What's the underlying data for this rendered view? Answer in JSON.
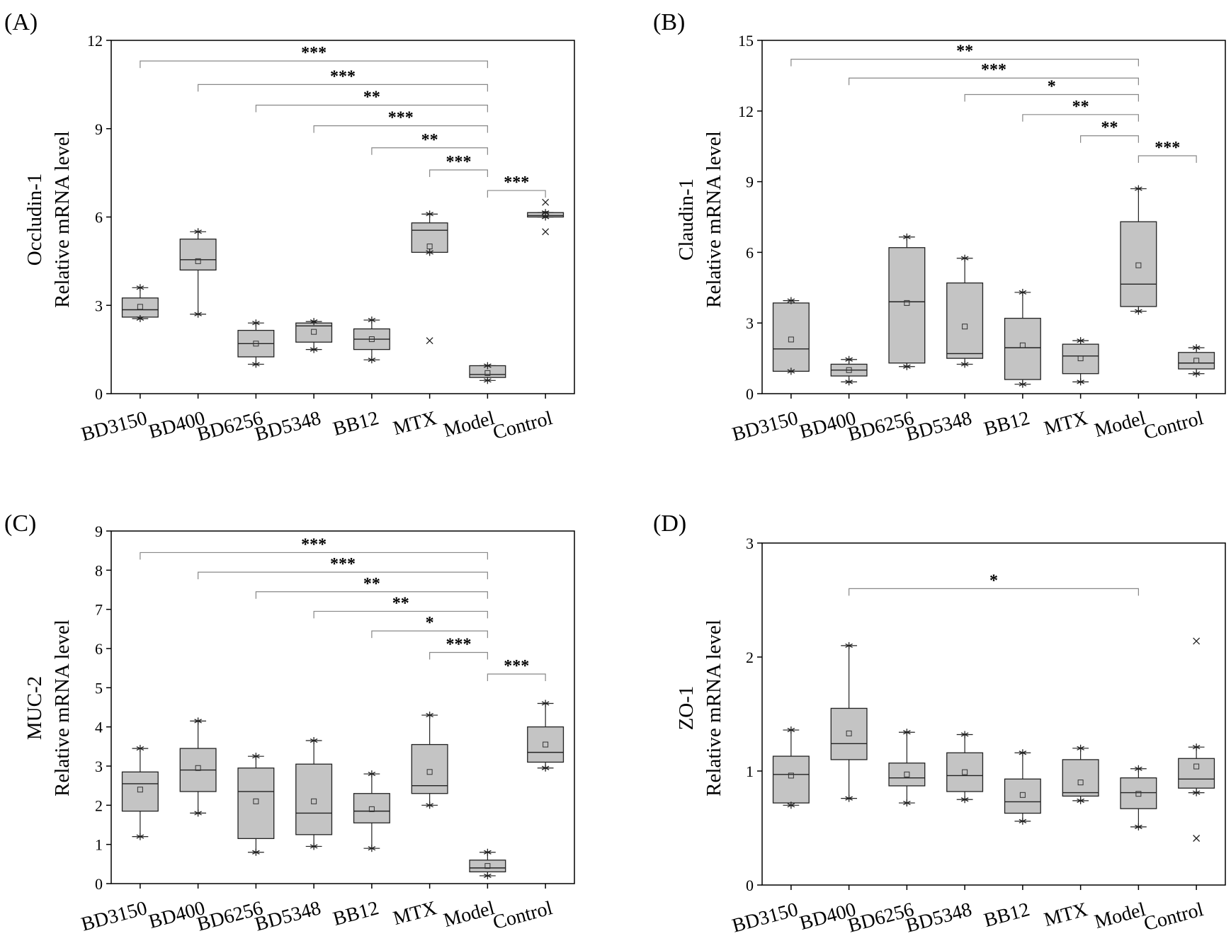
{
  "chart_data": [
    {
      "panel_label": "(A)",
      "type": "box",
      "ylabel_line1": "Occludin-1",
      "ylabel_line2": "Relative mRNA level",
      "ylim": [
        0,
        12
      ],
      "yticks": [
        "0",
        "3",
        "6",
        "9",
        "12"
      ],
      "categories": [
        "BD3150",
        "BD400",
        "BD6256",
        "BD5348",
        "BB12",
        "MTX",
        "Model",
        "Control"
      ],
      "boxes": [
        {
          "whisker_low": 2.55,
          "q1": 2.6,
          "median": 2.85,
          "q3": 3.25,
          "whisker_high": 3.6,
          "mean": 2.95,
          "outliers": []
        },
        {
          "whisker_low": 2.7,
          "q1": 4.2,
          "median": 4.55,
          "q3": 5.25,
          "whisker_high": 5.5,
          "mean": 4.5,
          "outliers": []
        },
        {
          "whisker_low": 1.0,
          "q1": 1.25,
          "median": 1.7,
          "q3": 2.15,
          "whisker_high": 2.4,
          "mean": 1.7,
          "outliers": []
        },
        {
          "whisker_low": 1.5,
          "q1": 1.75,
          "median": 2.3,
          "q3": 2.4,
          "whisker_high": 2.45,
          "mean": 2.1,
          "outliers": []
        },
        {
          "whisker_low": 1.15,
          "q1": 1.5,
          "median": 1.85,
          "q3": 2.2,
          "whisker_high": 2.5,
          "mean": 1.85,
          "outliers": []
        },
        {
          "whisker_low": 4.8,
          "q1": 4.8,
          "median": 5.55,
          "q3": 5.8,
          "whisker_high": 6.1,
          "mean": 5.0,
          "outliers": [
            1.8
          ]
        },
        {
          "whisker_low": 0.45,
          "q1": 0.55,
          "median": 0.65,
          "q3": 0.95,
          "whisker_high": 0.95,
          "mean": 0.7,
          "outliers": []
        },
        {
          "whisker_low": 6.0,
          "q1": 6.0,
          "median": 6.05,
          "q3": 6.15,
          "whisker_high": 6.15,
          "mean": 6.1,
          "outliers": [
            6.5,
            5.5
          ]
        }
      ],
      "comparisons": [
        {
          "from": 0,
          "to": 6,
          "level": 11.3,
          "label": "***"
        },
        {
          "from": 1,
          "to": 6,
          "level": 10.5,
          "label": "***"
        },
        {
          "from": 2,
          "to": 6,
          "level": 9.8,
          "label": "**"
        },
        {
          "from": 3,
          "to": 6,
          "level": 9.1,
          "label": "***"
        },
        {
          "from": 4,
          "to": 6,
          "level": 8.35,
          "label": "**"
        },
        {
          "from": 5,
          "to": 6,
          "level": 7.6,
          "label": "***"
        },
        {
          "from": 6,
          "to": 7,
          "level": 6.9,
          "label": "***"
        }
      ]
    },
    {
      "panel_label": "(B)",
      "type": "box",
      "ylabel_line1": "Claudin-1",
      "ylabel_line2": "Relative mRNA level",
      "ylim": [
        0,
        15
      ],
      "yticks": [
        "0",
        "3",
        "6",
        "9",
        "12",
        "15"
      ],
      "categories": [
        "BD3150",
        "BD400",
        "BD6256",
        "BD5348",
        "BB12",
        "MTX",
        "Model",
        "Control"
      ],
      "boxes": [
        {
          "whisker_low": 0.95,
          "q1": 0.95,
          "median": 1.9,
          "q3": 3.85,
          "whisker_high": 3.95,
          "mean": 2.3,
          "outliers": []
        },
        {
          "whisker_low": 0.5,
          "q1": 0.75,
          "median": 1.0,
          "q3": 1.25,
          "whisker_high": 1.45,
          "mean": 1.0,
          "outliers": []
        },
        {
          "whisker_low": 1.15,
          "q1": 1.3,
          "median": 3.9,
          "q3": 6.2,
          "whisker_high": 6.65,
          "mean": 3.85,
          "outliers": []
        },
        {
          "whisker_low": 1.25,
          "q1": 1.5,
          "median": 1.7,
          "q3": 4.7,
          "whisker_high": 5.75,
          "mean": 2.85,
          "outliers": []
        },
        {
          "whisker_low": 0.4,
          "q1": 0.6,
          "median": 1.95,
          "q3": 3.2,
          "whisker_high": 4.3,
          "mean": 2.05,
          "outliers": []
        },
        {
          "whisker_low": 0.5,
          "q1": 0.85,
          "median": 1.6,
          "q3": 2.1,
          "whisker_high": 2.25,
          "mean": 1.5,
          "outliers": []
        },
        {
          "whisker_low": 3.5,
          "q1": 3.7,
          "median": 4.65,
          "q3": 7.3,
          "whisker_high": 8.7,
          "mean": 5.45,
          "outliers": []
        },
        {
          "whisker_low": 0.85,
          "q1": 1.05,
          "median": 1.3,
          "q3": 1.75,
          "whisker_high": 1.95,
          "mean": 1.4,
          "outliers": []
        }
      ],
      "comparisons": [
        {
          "from": 0,
          "to": 6,
          "level": 14.2,
          "label": "**"
        },
        {
          "from": 1,
          "to": 6,
          "level": 13.4,
          "label": "***"
        },
        {
          "from": 3,
          "to": 6,
          "level": 12.7,
          "label": "*"
        },
        {
          "from": 4,
          "to": 6,
          "level": 11.85,
          "label": "**"
        },
        {
          "from": 5,
          "to": 6,
          "level": 10.95,
          "label": "**"
        },
        {
          "from": 6,
          "to": 7,
          "level": 10.1,
          "label": "***"
        }
      ]
    },
    {
      "panel_label": "(C)",
      "type": "box",
      "ylabel_line1": "MUC-2",
      "ylabel_line2": "Relative mRNA level",
      "ylim": [
        0,
        9
      ],
      "yticks": [
        "0",
        "1",
        "2",
        "3",
        "4",
        "5",
        "6",
        "7",
        "8",
        "9"
      ],
      "categories": [
        "BD3150",
        "BD400",
        "BD6256",
        "BD5348",
        "BB12",
        "MTX",
        "Model",
        "Control"
      ],
      "boxes": [
        {
          "whisker_low": 1.2,
          "q1": 1.85,
          "median": 2.55,
          "q3": 2.85,
          "whisker_high": 3.45,
          "mean": 2.4,
          "outliers": []
        },
        {
          "whisker_low": 1.8,
          "q1": 2.35,
          "median": 2.9,
          "q3": 3.45,
          "whisker_high": 4.15,
          "mean": 2.95,
          "outliers": []
        },
        {
          "whisker_low": 0.8,
          "q1": 1.15,
          "median": 2.35,
          "q3": 2.95,
          "whisker_high": 3.25,
          "mean": 2.1,
          "outliers": []
        },
        {
          "whisker_low": 0.95,
          "q1": 1.25,
          "median": 1.8,
          "q3": 3.05,
          "whisker_high": 3.65,
          "mean": 2.1,
          "outliers": []
        },
        {
          "whisker_low": 0.9,
          "q1": 1.55,
          "median": 1.85,
          "q3": 2.3,
          "whisker_high": 2.8,
          "mean": 1.9,
          "outliers": []
        },
        {
          "whisker_low": 2.0,
          "q1": 2.3,
          "median": 2.5,
          "q3": 3.55,
          "whisker_high": 4.3,
          "mean": 2.85,
          "outliers": []
        },
        {
          "whisker_low": 0.2,
          "q1": 0.3,
          "median": 0.4,
          "q3": 0.6,
          "whisker_high": 0.8,
          "mean": 0.45,
          "outliers": []
        },
        {
          "whisker_low": 2.95,
          "q1": 3.1,
          "median": 3.35,
          "q3": 4.0,
          "whisker_high": 4.6,
          "mean": 3.55,
          "outliers": []
        }
      ],
      "comparisons": [
        {
          "from": 0,
          "to": 6,
          "level": 8.45,
          "label": "***"
        },
        {
          "from": 1,
          "to": 6,
          "level": 7.95,
          "label": "***"
        },
        {
          "from": 2,
          "to": 6,
          "level": 7.45,
          "label": "**"
        },
        {
          "from": 3,
          "to": 6,
          "level": 6.95,
          "label": "**"
        },
        {
          "from": 4,
          "to": 6,
          "level": 6.45,
          "label": "*"
        },
        {
          "from": 5,
          "to": 6,
          "level": 5.9,
          "label": "***"
        },
        {
          "from": 6,
          "to": 7,
          "level": 5.35,
          "label": "***"
        }
      ]
    },
    {
      "panel_label": "(D)",
      "type": "box",
      "ylabel_line1": "ZO-1",
      "ylabel_line2": "Relative mRNA level",
      "ylim": [
        0,
        3
      ],
      "yticks": [
        "0",
        "1",
        "2",
        "3"
      ],
      "categories": [
        "BD3150",
        "BD400",
        "BD6256",
        "BD5348",
        "BB12",
        "MTX",
        "Model",
        "Control"
      ],
      "boxes": [
        {
          "whisker_low": 0.7,
          "q1": 0.72,
          "median": 0.97,
          "q3": 1.13,
          "whisker_high": 1.36,
          "mean": 0.96,
          "outliers": []
        },
        {
          "whisker_low": 0.76,
          "q1": 1.1,
          "median": 1.24,
          "q3": 1.55,
          "whisker_high": 2.1,
          "mean": 1.33,
          "outliers": []
        },
        {
          "whisker_low": 0.72,
          "q1": 0.87,
          "median": 0.94,
          "q3": 1.07,
          "whisker_high": 1.34,
          "mean": 0.97,
          "outliers": []
        },
        {
          "whisker_low": 0.75,
          "q1": 0.82,
          "median": 0.96,
          "q3": 1.16,
          "whisker_high": 1.32,
          "mean": 0.99,
          "outliers": []
        },
        {
          "whisker_low": 0.56,
          "q1": 0.63,
          "median": 0.73,
          "q3": 0.93,
          "whisker_high": 1.16,
          "mean": 0.79,
          "outliers": []
        },
        {
          "whisker_low": 0.74,
          "q1": 0.78,
          "median": 0.81,
          "q3": 1.1,
          "whisker_high": 1.2,
          "mean": 0.9,
          "outliers": []
        },
        {
          "whisker_low": 0.51,
          "q1": 0.67,
          "median": 0.81,
          "q3": 0.94,
          "whisker_high": 1.02,
          "mean": 0.8,
          "outliers": []
        },
        {
          "whisker_low": 0.81,
          "q1": 0.85,
          "median": 0.93,
          "q3": 1.11,
          "whisker_high": 1.21,
          "mean": 1.04,
          "outliers": [
            2.14,
            0.41
          ]
        }
      ],
      "comparisons": [
        {
          "from": 1,
          "to": 6,
          "level": 2.6,
          "label": "*"
        }
      ]
    }
  ]
}
